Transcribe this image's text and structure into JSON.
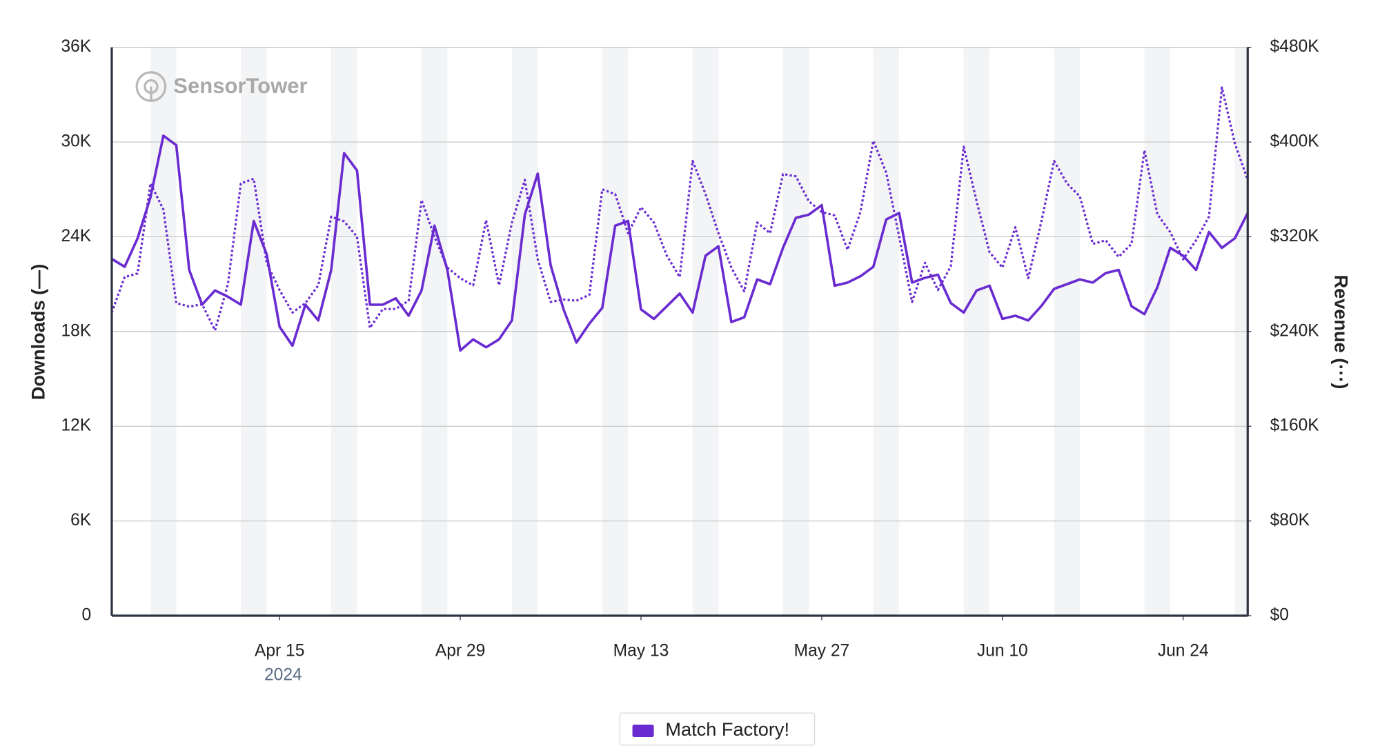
{
  "chart_data": {
    "type": "line",
    "watermark": "SensorTower",
    "y_label": "Downloads (—)",
    "y2_label": "Revenue (···)",
    "x": [
      "2024-04-02",
      "2024-04-03",
      "2024-04-04",
      "2024-04-05",
      "2024-04-06",
      "2024-04-07",
      "2024-04-08",
      "2024-04-09",
      "2024-04-10",
      "2024-04-11",
      "2024-04-12",
      "2024-04-13",
      "2024-04-14",
      "2024-04-15",
      "2024-04-16",
      "2024-04-17",
      "2024-04-18",
      "2024-04-19",
      "2024-04-20",
      "2024-04-21",
      "2024-04-22",
      "2024-04-23",
      "2024-04-24",
      "2024-04-25",
      "2024-04-26",
      "2024-04-27",
      "2024-04-28",
      "2024-04-29",
      "2024-04-30",
      "2024-05-01",
      "2024-05-02",
      "2024-05-03",
      "2024-05-04",
      "2024-05-05",
      "2024-05-06",
      "2024-05-07",
      "2024-05-08",
      "2024-05-09",
      "2024-05-10",
      "2024-05-11",
      "2024-05-12",
      "2024-05-13",
      "2024-05-14",
      "2024-05-15",
      "2024-05-16",
      "2024-05-17",
      "2024-05-18",
      "2024-05-19",
      "2024-05-20",
      "2024-05-21",
      "2024-05-22",
      "2024-05-23",
      "2024-05-24",
      "2024-05-25",
      "2024-05-26",
      "2024-05-27",
      "2024-05-28",
      "2024-05-29",
      "2024-05-30",
      "2024-05-31",
      "2024-06-01",
      "2024-06-02",
      "2024-06-03",
      "2024-06-04",
      "2024-06-05",
      "2024-06-06",
      "2024-06-07",
      "2024-06-08",
      "2024-06-09",
      "2024-06-10",
      "2024-06-11",
      "2024-06-12",
      "2024-06-13",
      "2024-06-14",
      "2024-06-15",
      "2024-06-16",
      "2024-06-17",
      "2024-06-18",
      "2024-06-19",
      "2024-06-20",
      "2024-06-21",
      "2024-06-22",
      "2024-06-23",
      "2024-06-24",
      "2024-06-25",
      "2024-06-26",
      "2024-06-27",
      "2024-06-28",
      "2024-06-29"
    ],
    "xlim": [
      "2024-04-02",
      "2024-06-29"
    ],
    "xticks": [
      {
        "value": "2024-04-15",
        "label": "Apr 15"
      },
      {
        "value": "2024-04-29",
        "label": "Apr 29"
      },
      {
        "value": "2024-05-13",
        "label": "May 13"
      },
      {
        "value": "2024-05-27",
        "label": "May 27"
      },
      {
        "value": "2024-06-10",
        "label": "Jun 10"
      },
      {
        "value": "2024-06-24",
        "label": "Jun 24"
      }
    ],
    "year_label": "2024",
    "ylim": [
      0,
      36000
    ],
    "yticks": [
      0,
      {
        "value": 6000,
        "label": "6K"
      },
      {
        "value": 12000,
        "label": "12K"
      },
      {
        "value": 18000,
        "label": "18K"
      },
      {
        "value": 24000,
        "label": "24K"
      },
      {
        "value": 30000,
        "label": "30K"
      },
      {
        "value": 36000,
        "label": "36K"
      }
    ],
    "y2lim": [
      0,
      480000
    ],
    "y2ticks": [
      {
        "value": 0,
        "label": "$0"
      },
      {
        "value": 80000,
        "label": "$80K"
      },
      {
        "value": 160000,
        "label": "$160K"
      },
      {
        "value": 240000,
        "label": "$240K"
      },
      {
        "value": 320000,
        "label": "$320K"
      },
      {
        "value": 400000,
        "label": "$400K"
      },
      {
        "value": 480000,
        "label": "$480K"
      }
    ],
    "grid": true,
    "weekend_shading": true,
    "series": [
      {
        "color": "#6a2bd0",
        "style": "solid",
        "axis": "y",
        "values": [
          22600,
          22100,
          23900,
          26500,
          30400,
          29800,
          21900,
          19700,
          20600,
          20200,
          19700,
          25000,
          22900,
          18300,
          17100,
          19700,
          18700,
          21900,
          29300,
          28200,
          19700,
          19700,
          20100,
          19000,
          20600,
          24700,
          21900,
          16800,
          17500,
          17000,
          17500,
          18700,
          25400,
          28000,
          22200,
          19400,
          17300,
          18500,
          19500,
          24700,
          25000,
          19400,
          18800,
          19600,
          20400,
          19200,
          22800,
          23400,
          18600,
          18900,
          21300,
          21000,
          23300,
          25200,
          25400,
          26000,
          20900,
          21100,
          21500,
          22100,
          25100,
          25500,
          21100,
          21400,
          21600,
          19800,
          19200,
          20600,
          20900,
          18800,
          19000,
          18700,
          19600,
          20700,
          21000,
          21300,
          21100,
          21700,
          21900,
          19600,
          19100,
          20800,
          23300,
          22800,
          21900,
          24300,
          23300,
          23900,
          25500
        ]
      },
      {
        "color": "#6a2bd0",
        "style": "dotted",
        "axis": "y2",
        "values": [
          256000,
          286000,
          289000,
          365000,
          343000,
          264000,
          261000,
          263000,
          241000,
          280000,
          365000,
          369000,
          298000,
          275000,
          256000,
          264000,
          279000,
          337000,
          333000,
          320000,
          243000,
          259000,
          259000,
          266000,
          351000,
          320000,
          294000,
          285000,
          279000,
          334000,
          279000,
          332000,
          368000,
          301000,
          265000,
          267000,
          266000,
          271000,
          360000,
          356000,
          323000,
          345000,
          332000,
          304000,
          286000,
          384000,
          356000,
          323000,
          294000,
          274000,
          332000,
          323000,
          373000,
          371000,
          350000,
          341000,
          338000,
          309000,
          341000,
          401000,
          374000,
          320000,
          265000,
          298000,
          275000,
          295000,
          396000,
          350000,
          307000,
          294000,
          328000,
          285000,
          332000,
          384000,
          365000,
          354000,
          314000,
          317000,
          303000,
          314000,
          393000,
          339000,
          324000,
          301000,
          317000,
          337000,
          446000,
          399000,
          368000
        ]
      }
    ],
    "legend": {
      "label": "Match Factory!",
      "color": "#6a2bd0",
      "position": "bottom"
    }
  }
}
